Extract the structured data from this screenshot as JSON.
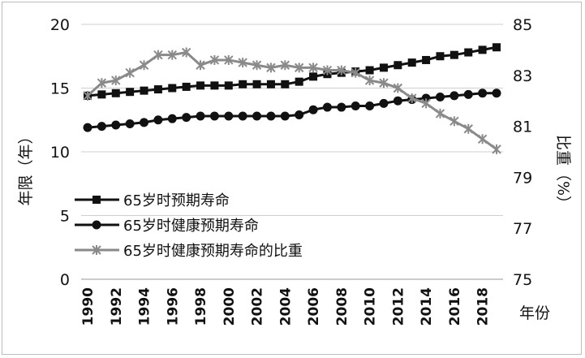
{
  "chart_data": {
    "type": "line",
    "title": "",
    "x": [
      1990,
      1991,
      1992,
      1993,
      1994,
      1995,
      1996,
      1997,
      1998,
      1999,
      2000,
      2001,
      2002,
      2003,
      2004,
      2005,
      2006,
      2007,
      2008,
      2009,
      2010,
      2011,
      2012,
      2013,
      2014,
      2015,
      2016,
      2017,
      2018,
      2019
    ],
    "x_tick_labels": [
      "1990",
      "1992",
      "1994",
      "1996",
      "1998",
      "2000",
      "2002",
      "2004",
      "2006",
      "2008",
      "2010",
      "2012",
      "2014",
      "2016",
      "2018"
    ],
    "x_unit_label": "年份",
    "ylabel_left": "年限（年）",
    "ylabel_right": "比重（%）",
    "ylim_left": [
      0,
      20
    ],
    "ylim_right": [
      75,
      85
    ],
    "yticks_left": [
      "0",
      "5",
      "10",
      "15",
      "20"
    ],
    "yticks_right": [
      "75",
      "77",
      "79",
      "81",
      "83",
      "85"
    ],
    "grid": "horizontal",
    "legend_position": "middle-left",
    "series": [
      {
        "name": "65岁时预期寿命",
        "axis": "left",
        "marker": "square",
        "color": "#111111",
        "values": [
          14.4,
          14.5,
          14.6,
          14.7,
          14.8,
          14.9,
          15.0,
          15.1,
          15.2,
          15.2,
          15.2,
          15.3,
          15.3,
          15.3,
          15.3,
          15.5,
          15.9,
          16.1,
          16.2,
          16.3,
          16.4,
          16.6,
          16.8,
          17.0,
          17.2,
          17.5,
          17.6,
          17.8,
          18.0,
          18.2
        ]
      },
      {
        "name": "65岁时健康预期寿命",
        "axis": "left",
        "marker": "circle",
        "color": "#111111",
        "values": [
          11.9,
          12.0,
          12.1,
          12.2,
          12.3,
          12.5,
          12.6,
          12.7,
          12.8,
          12.8,
          12.8,
          12.8,
          12.8,
          12.8,
          12.8,
          12.9,
          13.3,
          13.5,
          13.5,
          13.6,
          13.6,
          13.8,
          14.0,
          14.1,
          14.2,
          14.3,
          14.4,
          14.5,
          14.6,
          14.6
        ]
      },
      {
        "name": "65岁时健康预期寿命的比重",
        "axis": "right",
        "marker": "star",
        "color": "#8a8a8a",
        "values": [
          82.2,
          82.7,
          82.8,
          83.1,
          83.4,
          83.8,
          83.8,
          83.9,
          83.4,
          83.6,
          83.6,
          83.5,
          83.4,
          83.3,
          83.4,
          83.3,
          83.3,
          83.2,
          83.2,
          83.1,
          82.8,
          82.7,
          82.5,
          82.1,
          81.9,
          81.5,
          81.2,
          80.9,
          80.5,
          80.1
        ]
      }
    ]
  }
}
